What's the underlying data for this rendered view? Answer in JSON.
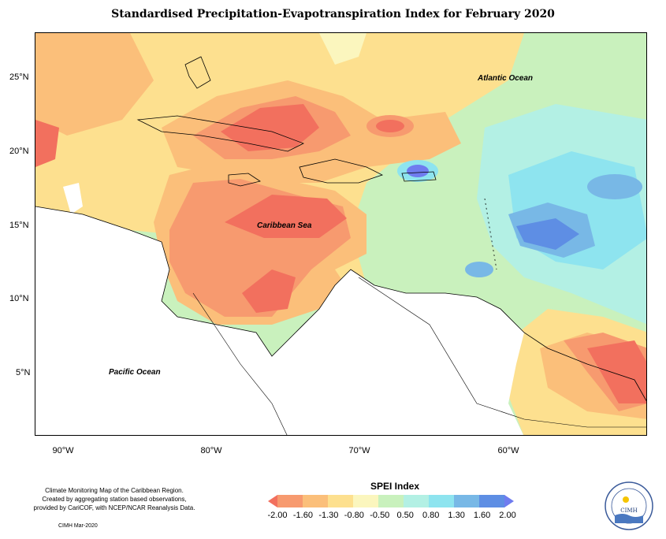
{
  "title": "Standardised Precipitation-Evapotranspiration Index for February 2020",
  "map": {
    "latitude_labels": [
      "25°N",
      "20°N",
      "15°N",
      "10°N",
      "5°N"
    ],
    "longitude_labels": [
      "90°W",
      "80°W",
      "70°W",
      "60°W"
    ],
    "ocean_labels": {
      "atlantic": "Atlantic Ocean",
      "caribbean": "Caribbean Sea",
      "pacific": "Pacific Ocean"
    }
  },
  "legend": {
    "title": "SPEI Index",
    "ticks": [
      "-2.00",
      "-1.60",
      "-1.30",
      "-0.80",
      "-0.50",
      "0.50",
      "0.80",
      "1.30",
      "1.60",
      "2.00"
    ],
    "colors": [
      "#f2705e",
      "#f79a6f",
      "#fbbf7a",
      "#fde08f",
      "#fbf6be",
      "#c9f1bd",
      "#b3f0e4",
      "#8ee4ef",
      "#78b8e6",
      "#5e8ee4",
      "#6f7cef"
    ]
  },
  "footer": {
    "lines": [
      "Climate Monitoring Map of the Caribbean Region.",
      "Created by aggregating station based observations,",
      "provided by CariCOF, with NCEP/NCAR Reanalysis Data."
    ],
    "credit": "CIMH Mar-2020"
  },
  "logo": {
    "name": "CIMH",
    "ring_text": "Caribbean Institute for Meteorology and Hydrology"
  }
}
